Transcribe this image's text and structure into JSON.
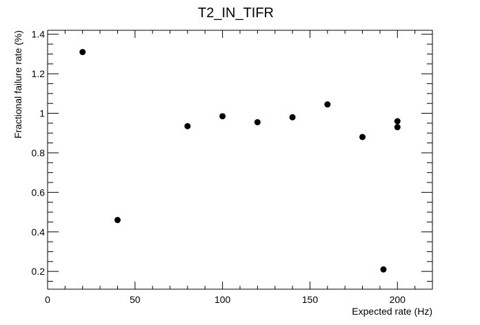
{
  "chart_data": {
    "type": "scatter",
    "title": "T2_IN_TIFR",
    "xlabel": "Expected rate (Hz)",
    "ylabel": "Fractional failure rate (%)",
    "xlim": [
      0,
      220
    ],
    "ylim": [
      0.11,
      1.42
    ],
    "xticks": [
      {
        "value": 0,
        "label": "0"
      },
      {
        "value": 50,
        "label": "50"
      },
      {
        "value": 100,
        "label": "100"
      },
      {
        "value": 150,
        "label": "150"
      },
      {
        "value": 200,
        "label": "200"
      }
    ],
    "yticks": [
      {
        "value": 0.2,
        "label": "0.2"
      },
      {
        "value": 0.4,
        "label": "0.4"
      },
      {
        "value": 0.6,
        "label": "0.6"
      },
      {
        "value": 0.8,
        "label": "0.8"
      },
      {
        "value": 1.0,
        "label": "1"
      },
      {
        "value": 1.2,
        "label": "1.2"
      },
      {
        "value": 1.4,
        "label": "1.4"
      }
    ],
    "grid": false,
    "marker_color": "#000000",
    "points": [
      {
        "x": 20,
        "y": 1.31
      },
      {
        "x": 40,
        "y": 0.46
      },
      {
        "x": 80,
        "y": 0.935
      },
      {
        "x": 100,
        "y": 0.985
      },
      {
        "x": 120,
        "y": 0.955
      },
      {
        "x": 140,
        "y": 0.98
      },
      {
        "x": 160,
        "y": 1.045
      },
      {
        "x": 180,
        "y": 0.88
      },
      {
        "x": 192,
        "y": 0.21
      },
      {
        "x": 200,
        "y": 0.96
      },
      {
        "x": 200,
        "y": 0.93
      }
    ]
  }
}
